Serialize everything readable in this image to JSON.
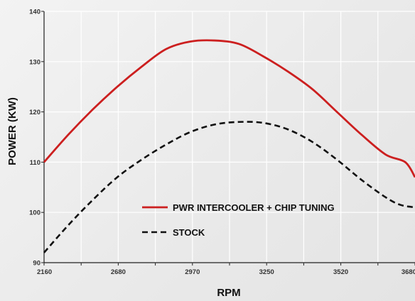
{
  "chart_data": {
    "type": "line",
    "xlabel": "RPM",
    "ylabel": "POWER (KW)",
    "xlim": [
      2160,
      3680
    ],
    "ylim": [
      90,
      140
    ],
    "x_tick_labels": [
      "2160",
      "2680",
      "2970",
      "3250",
      "3520",
      "3680"
    ],
    "y_ticks": [
      90,
      100,
      110,
      120,
      130,
      140
    ],
    "grid": true,
    "legend_position": "center",
    "series": [
      {
        "name": "PWR INTERCOOLER + CHIP TUNING",
        "color": "#cc1f1f",
        "style": "solid",
        "points": [
          [
            2160,
            110.0
          ],
          [
            2260,
            115.5
          ],
          [
            2360,
            120.5
          ],
          [
            2460,
            125.0
          ],
          [
            2560,
            129.0
          ],
          [
            2660,
            132.5
          ],
          [
            2760,
            134.0
          ],
          [
            2860,
            134.2
          ],
          [
            2960,
            133.5
          ],
          [
            3060,
            131.0
          ],
          [
            3160,
            128.0
          ],
          [
            3260,
            124.5
          ],
          [
            3360,
            120.0
          ],
          [
            3460,
            115.5
          ],
          [
            3560,
            111.5
          ],
          [
            3640,
            110.0
          ],
          [
            3680,
            107.0
          ]
        ]
      },
      {
        "name": "STOCK",
        "color": "#111111",
        "style": "dashed",
        "points": [
          [
            2160,
            92.0
          ],
          [
            2260,
            97.5
          ],
          [
            2360,
            102.5
          ],
          [
            2460,
            107.0
          ],
          [
            2560,
            110.5
          ],
          [
            2660,
            113.5
          ],
          [
            2760,
            116.0
          ],
          [
            2860,
            117.5
          ],
          [
            2960,
            118.0
          ],
          [
            3060,
            117.8
          ],
          [
            3160,
            116.5
          ],
          [
            3260,
            114.0
          ],
          [
            3360,
            110.5
          ],
          [
            3460,
            106.5
          ],
          [
            3560,
            103.0
          ],
          [
            3620,
            101.5
          ],
          [
            3680,
            101.0
          ]
        ]
      }
    ]
  }
}
